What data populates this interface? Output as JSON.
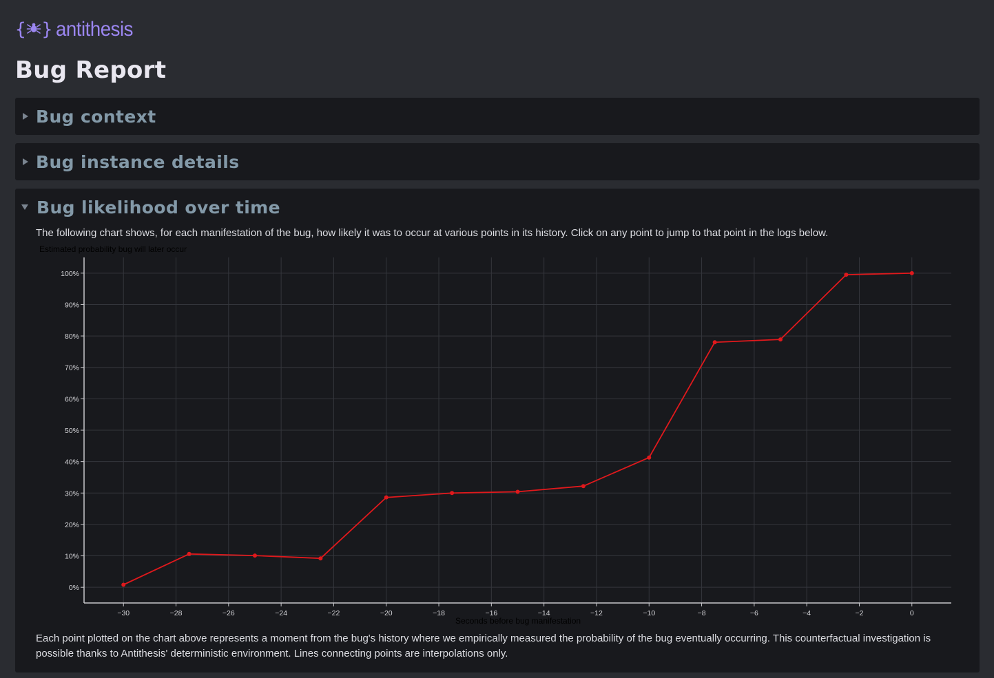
{
  "brand": {
    "name": "antithesis",
    "logo_icon": "bug-icon"
  },
  "page_title": "Bug Report",
  "sections": [
    {
      "title": "Bug context",
      "expanded": false
    },
    {
      "title": "Bug instance details",
      "expanded": false
    },
    {
      "title": "Bug likelihood over time",
      "expanded": true
    }
  ],
  "likelihood": {
    "description": "The following chart shows, for each manifestation of the bug, how likely it was to occur at various points in its history. Click on any point to jump to that point in the logs below.",
    "footnote": "Each point plotted on the chart above represents a moment from the bug's history where we empirically measured the probability of the bug eventually occurring. This counterfactual investigation is possible thanks to Antithesis' deterministic environment. Lines connecting points are interpolations only."
  },
  "chart_data": {
    "type": "line",
    "ylabel": "Estimated probability bug will later occur",
    "xlabel": "Seconds before bug manifestation",
    "xlim": [
      -31.5,
      1.5
    ],
    "ylim": [
      -5,
      105
    ],
    "x_ticks": [
      -30,
      -28,
      -26,
      -24,
      -22,
      -20,
      -18,
      -16,
      -14,
      -12,
      -10,
      -8,
      -6,
      -4,
      -2,
      0
    ],
    "x_tick_labels": [
      "−30",
      "−28",
      "−26",
      "−24",
      "−22",
      "−20",
      "−18",
      "−16",
      "−14",
      "−12",
      "−10",
      "−8",
      "−6",
      "−4",
      "−2",
      "0"
    ],
    "y_ticks": [
      0,
      10,
      20,
      30,
      40,
      50,
      60,
      70,
      80,
      90,
      100
    ],
    "y_tick_labels": [
      "0%",
      "10%",
      "20%",
      "30%",
      "40%",
      "50%",
      "60%",
      "70%",
      "80%",
      "90%",
      "100%"
    ],
    "grid": true,
    "colors": {
      "series": "#e0191c",
      "grid": "#34363c",
      "axis": "#c8c8cc",
      "text": "#d4d4d8"
    },
    "series": [
      {
        "x": [
          -30,
          -27.5,
          -25,
          -22.5,
          -20,
          -17.5,
          -15,
          -12.5,
          -10,
          -7.5,
          -5,
          -2.5,
          0
        ],
        "y": [
          0.8,
          10.6,
          10.1,
          9.2,
          28.6,
          30,
          30.4,
          32.2,
          41.3,
          78,
          78.9,
          99.5,
          100
        ]
      }
    ]
  }
}
